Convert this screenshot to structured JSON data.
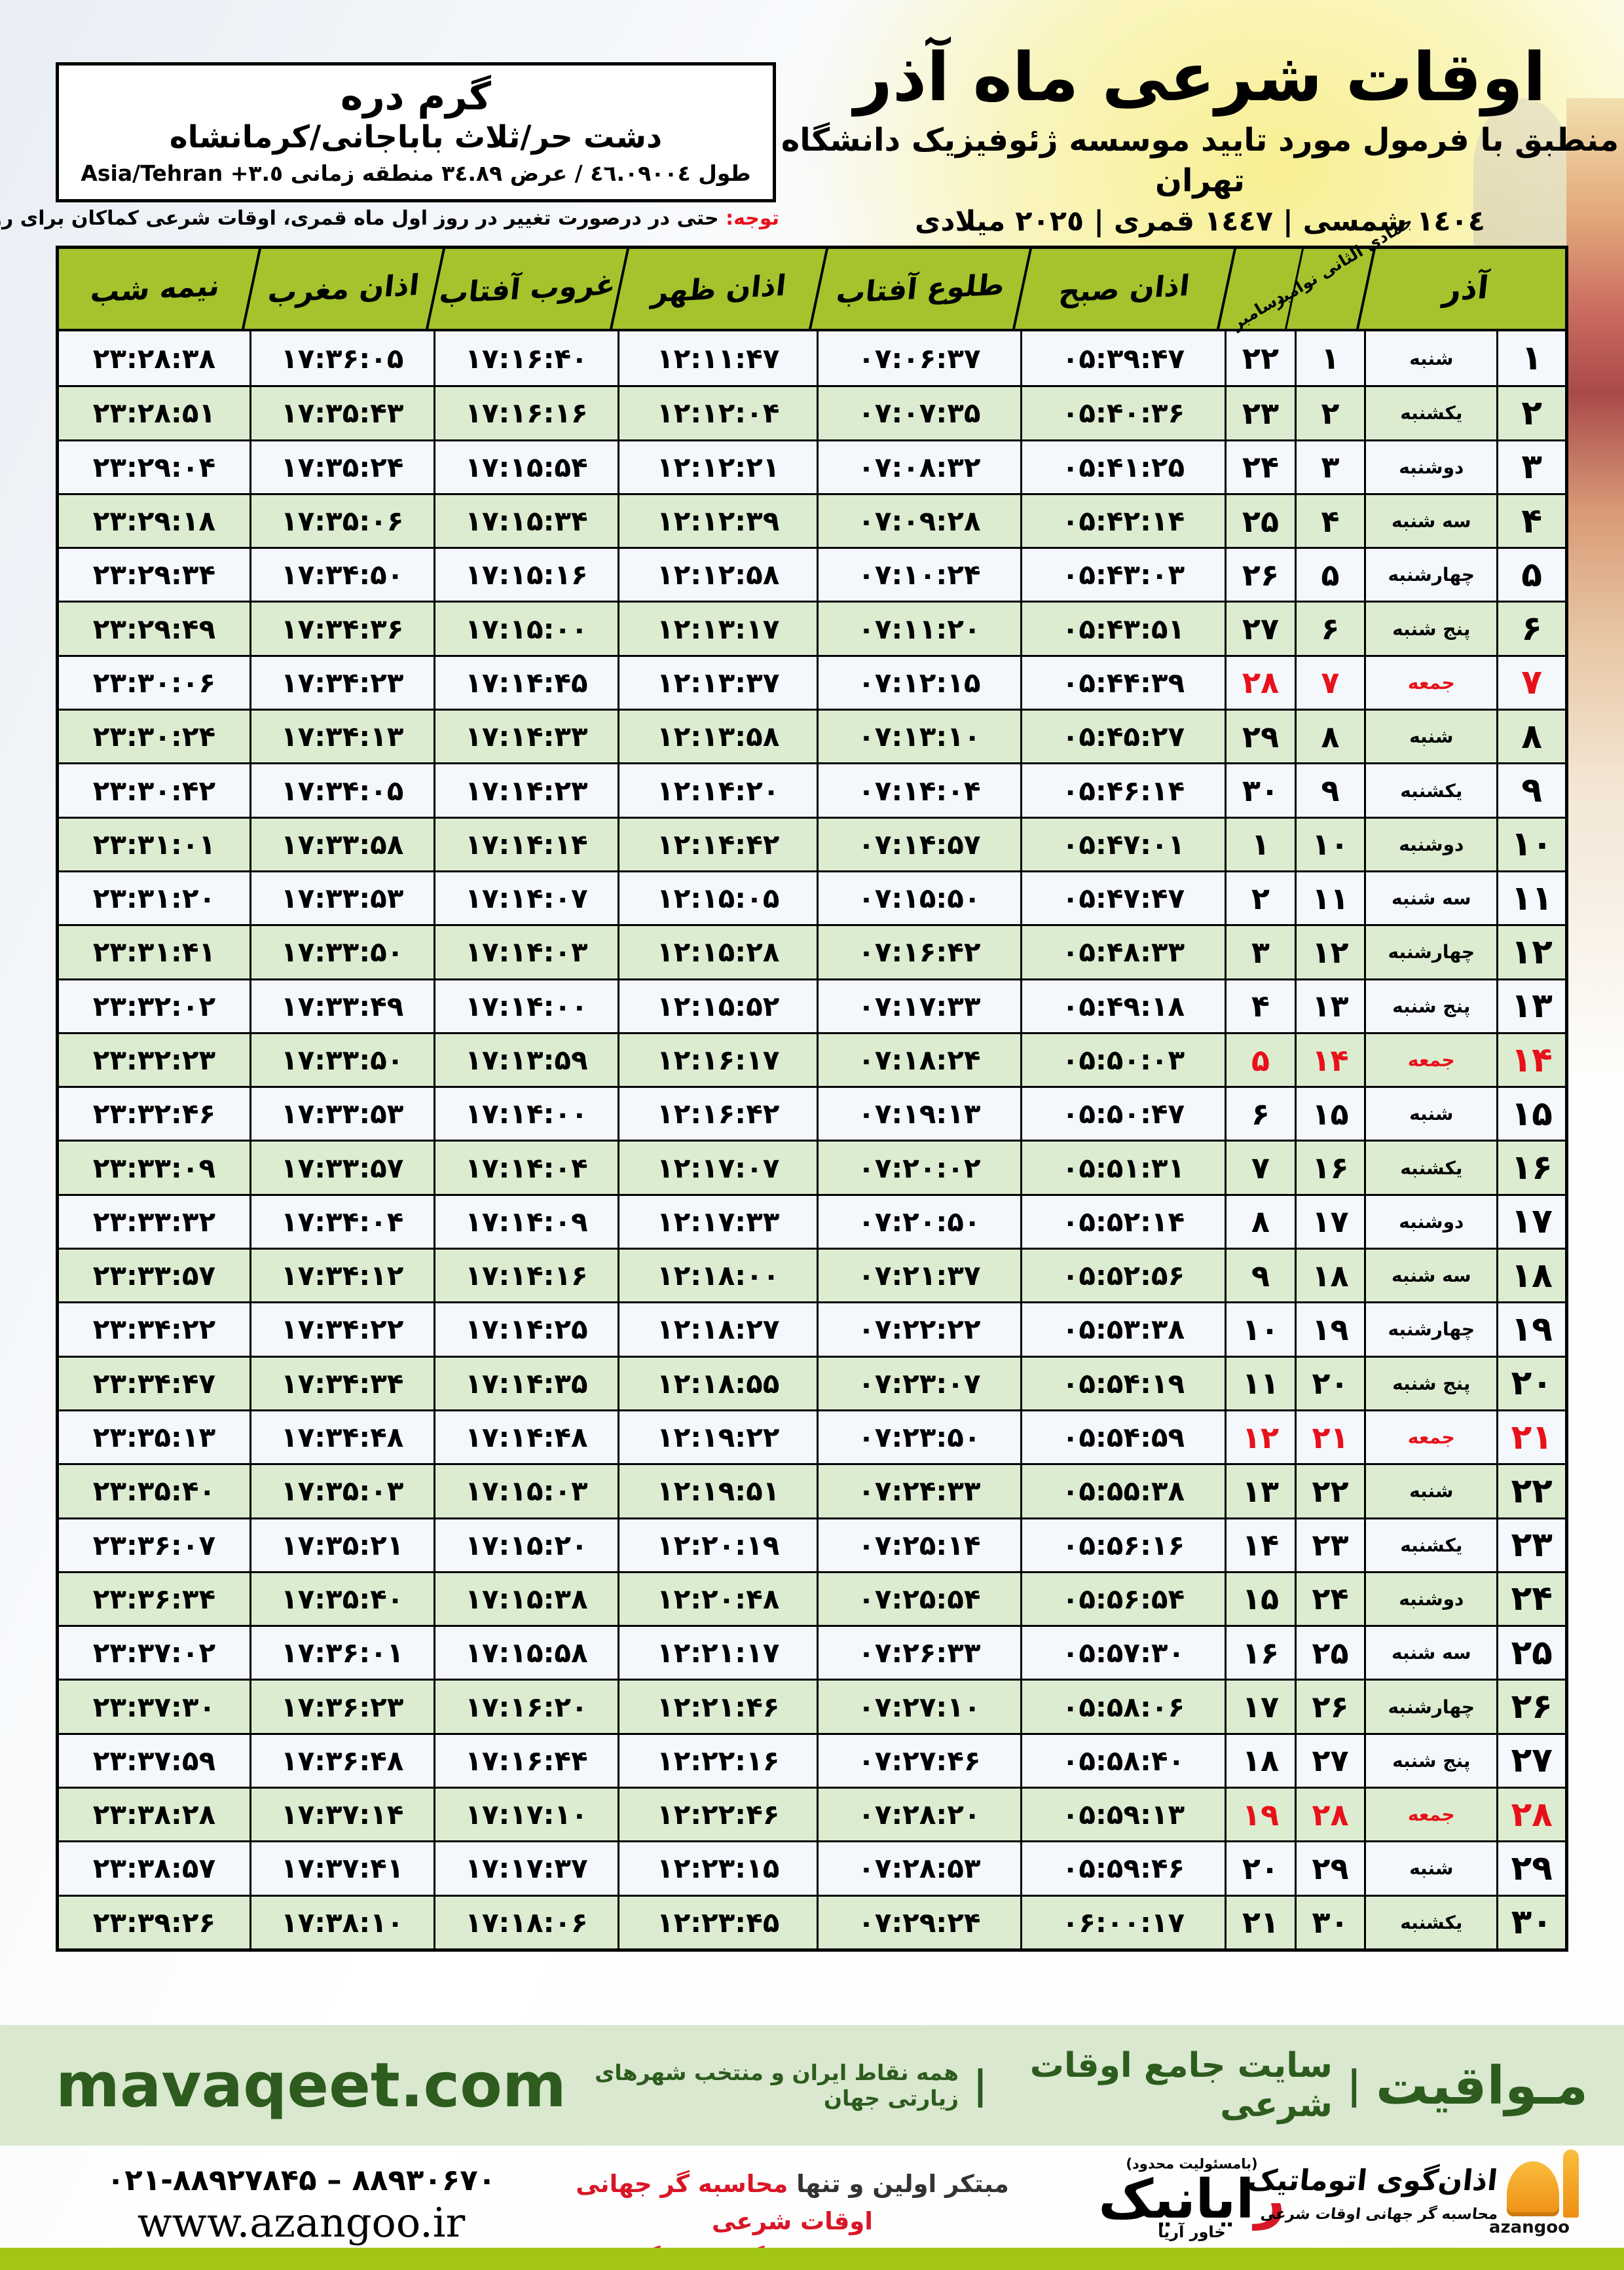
{
  "location_box": {
    "city": "گرم دره",
    "region": "دشت حر/ثلاث باباجانی/کرمانشاه",
    "coords": "طول ٤٦.٠٩٠٠٤ / عرض ٣٤.٨٩ منطقه زمانی ٣.٥+ Asia/Tehran"
  },
  "header": {
    "title": "اوقات شرعی ماه آذر",
    "subtitle": "منطبق با فرمول مورد تایید موسسه ژئوفیزیک دانشگاه تهران",
    "calendar_line": "١٤٠٤ شمسی | ١٤٤٧ قمری | ٢٠٢٥ میلادی"
  },
  "notice": {
    "label": "توجه:",
    "text": " حتی در درصورت تغییر در روز اول ماه قمری، اوقات شرعی کماکان برای روزهای شمسی و میلادی معتبر است."
  },
  "table": {
    "columns": {
      "azar": "آذر",
      "dates_top": "جمادی الثانی نوامبر",
      "dates_bottom": "دسامبر",
      "sobh": "اذان صبح",
      "tolu": "طلوع آفتاب",
      "zohr": "اذان ظهر",
      "ghorub": "غروب آفتاب",
      "maghreb": "اذان مغرب",
      "nimeshab": "نیمه شب"
    },
    "rows": [
      {
        "azar": "۱",
        "weekday": "شنبه",
        "hijri": "۱",
        "greg": "۲۲",
        "sobh": "۰۵:۳۹:۴۷",
        "tolu": "۰۷:۰۶:۳۷",
        "zohr": "۱۲:۱۱:۴۷",
        "ghorub": "۱۷:۱۶:۴۰",
        "maghreb": "۱۷:۳۶:۰۵",
        "nimeshab": "۲۳:۲۸:۳۸",
        "friday": false
      },
      {
        "azar": "۲",
        "weekday": "یکشنبه",
        "hijri": "۲",
        "greg": "۲۳",
        "sobh": "۰۵:۴۰:۳۶",
        "tolu": "۰۷:۰۷:۳۵",
        "zohr": "۱۲:۱۲:۰۴",
        "ghorub": "۱۷:۱۶:۱۶",
        "maghreb": "۱۷:۳۵:۴۳",
        "nimeshab": "۲۳:۲۸:۵۱",
        "friday": false
      },
      {
        "azar": "۳",
        "weekday": "دوشنبه",
        "hijri": "۳",
        "greg": "۲۴",
        "sobh": "۰۵:۴۱:۲۵",
        "tolu": "۰۷:۰۸:۳۲",
        "zohr": "۱۲:۱۲:۲۱",
        "ghorub": "۱۷:۱۵:۵۴",
        "maghreb": "۱۷:۳۵:۲۴",
        "nimeshab": "۲۳:۲۹:۰۴",
        "friday": false
      },
      {
        "azar": "۴",
        "weekday": "سه شنبه",
        "hijri": "۴",
        "greg": "۲۵",
        "sobh": "۰۵:۴۲:۱۴",
        "tolu": "۰۷:۰۹:۲۸",
        "zohr": "۱۲:۱۲:۳۹",
        "ghorub": "۱۷:۱۵:۳۴",
        "maghreb": "۱۷:۳۵:۰۶",
        "nimeshab": "۲۳:۲۹:۱۸",
        "friday": false
      },
      {
        "azar": "۵",
        "weekday": "چهارشنبه",
        "hijri": "۵",
        "greg": "۲۶",
        "sobh": "۰۵:۴۳:۰۳",
        "tolu": "۰۷:۱۰:۲۴",
        "zohr": "۱۲:۱۲:۵۸",
        "ghorub": "۱۷:۱۵:۱۶",
        "maghreb": "۱۷:۳۴:۵۰",
        "nimeshab": "۲۳:۲۹:۳۴",
        "friday": false
      },
      {
        "azar": "۶",
        "weekday": "پنج شنبه",
        "hijri": "۶",
        "greg": "۲۷",
        "sobh": "۰۵:۴۳:۵۱",
        "tolu": "۰۷:۱۱:۲۰",
        "zohr": "۱۲:۱۳:۱۷",
        "ghorub": "۱۷:۱۵:۰۰",
        "maghreb": "۱۷:۳۴:۳۶",
        "nimeshab": "۲۳:۲۹:۴۹",
        "friday": false
      },
      {
        "azar": "۷",
        "weekday": "جمعه",
        "hijri": "۷",
        "greg": "۲۸",
        "sobh": "۰۵:۴۴:۳۹",
        "tolu": "۰۷:۱۲:۱۵",
        "zohr": "۱۲:۱۳:۳۷",
        "ghorub": "۱۷:۱۴:۴۵",
        "maghreb": "۱۷:۳۴:۲۳",
        "nimeshab": "۲۳:۳۰:۰۶",
        "friday": true
      },
      {
        "azar": "۸",
        "weekday": "شنبه",
        "hijri": "۸",
        "greg": "۲۹",
        "sobh": "۰۵:۴۵:۲۷",
        "tolu": "۰۷:۱۳:۱۰",
        "zohr": "۱۲:۱۳:۵۸",
        "ghorub": "۱۷:۱۴:۳۳",
        "maghreb": "۱۷:۳۴:۱۳",
        "nimeshab": "۲۳:۳۰:۲۴",
        "friday": false
      },
      {
        "azar": "۹",
        "weekday": "یکشنبه",
        "hijri": "۹",
        "greg": "۳۰",
        "sobh": "۰۵:۴۶:۱۴",
        "tolu": "۰۷:۱۴:۰۴",
        "zohr": "۱۲:۱۴:۲۰",
        "ghorub": "۱۷:۱۴:۲۳",
        "maghreb": "۱۷:۳۴:۰۵",
        "nimeshab": "۲۳:۳۰:۴۲",
        "friday": false
      },
      {
        "azar": "۱۰",
        "weekday": "دوشنبه",
        "hijri": "۱۰",
        "greg": "۱",
        "sobh": "۰۵:۴۷:۰۱",
        "tolu": "۰۷:۱۴:۵۷",
        "zohr": "۱۲:۱۴:۴۲",
        "ghorub": "۱۷:۱۴:۱۴",
        "maghreb": "۱۷:۳۳:۵۸",
        "nimeshab": "۲۳:۳۱:۰۱",
        "friday": false
      },
      {
        "azar": "۱۱",
        "weekday": "سه شنبه",
        "hijri": "۱۱",
        "greg": "۲",
        "sobh": "۰۵:۴۷:۴۷",
        "tolu": "۰۷:۱۵:۵۰",
        "zohr": "۱۲:۱۵:۰۵",
        "ghorub": "۱۷:۱۴:۰۷",
        "maghreb": "۱۷:۳۳:۵۳",
        "nimeshab": "۲۳:۳۱:۲۰",
        "friday": false
      },
      {
        "azar": "۱۲",
        "weekday": "چهارشنبه",
        "hijri": "۱۲",
        "greg": "۳",
        "sobh": "۰۵:۴۸:۳۳",
        "tolu": "۰۷:۱۶:۴۲",
        "zohr": "۱۲:۱۵:۲۸",
        "ghorub": "۱۷:۱۴:۰۳",
        "maghreb": "۱۷:۳۳:۵۰",
        "nimeshab": "۲۳:۳۱:۴۱",
        "friday": false
      },
      {
        "azar": "۱۳",
        "weekday": "پنج شنبه",
        "hijri": "۱۳",
        "greg": "۴",
        "sobh": "۰۵:۴۹:۱۸",
        "tolu": "۰۷:۱۷:۳۳",
        "zohr": "۱۲:۱۵:۵۲",
        "ghorub": "۱۷:۱۴:۰۰",
        "maghreb": "۱۷:۳۳:۴۹",
        "nimeshab": "۲۳:۳۲:۰۲",
        "friday": false
      },
      {
        "azar": "۱۴",
        "weekday": "جمعه",
        "hijri": "۱۴",
        "greg": "۵",
        "sobh": "۰۵:۵۰:۰۳",
        "tolu": "۰۷:۱۸:۲۴",
        "zohr": "۱۲:۱۶:۱۷",
        "ghorub": "۱۷:۱۳:۵۹",
        "maghreb": "۱۷:۳۳:۵۰",
        "nimeshab": "۲۳:۳۲:۲۳",
        "friday": true
      },
      {
        "azar": "۱۵",
        "weekday": "شنبه",
        "hijri": "۱۵",
        "greg": "۶",
        "sobh": "۰۵:۵۰:۴۷",
        "tolu": "۰۷:۱۹:۱۳",
        "zohr": "۱۲:۱۶:۴۲",
        "ghorub": "۱۷:۱۴:۰۰",
        "maghreb": "۱۷:۳۳:۵۳",
        "nimeshab": "۲۳:۳۲:۴۶",
        "friday": false
      },
      {
        "azar": "۱۶",
        "weekday": "یکشنبه",
        "hijri": "۱۶",
        "greg": "۷",
        "sobh": "۰۵:۵۱:۳۱",
        "tolu": "۰۷:۲۰:۰۲",
        "zohr": "۱۲:۱۷:۰۷",
        "ghorub": "۱۷:۱۴:۰۴",
        "maghreb": "۱۷:۳۳:۵۷",
        "nimeshab": "۲۳:۳۳:۰۹",
        "friday": false
      },
      {
        "azar": "۱۷",
        "weekday": "دوشنبه",
        "hijri": "۱۷",
        "greg": "۸",
        "sobh": "۰۵:۵۲:۱۴",
        "tolu": "۰۷:۲۰:۵۰",
        "zohr": "۱۲:۱۷:۳۳",
        "ghorub": "۱۷:۱۴:۰۹",
        "maghreb": "۱۷:۳۴:۰۴",
        "nimeshab": "۲۳:۳۳:۳۲",
        "friday": false
      },
      {
        "azar": "۱۸",
        "weekday": "سه شنبه",
        "hijri": "۱۸",
        "greg": "۹",
        "sobh": "۰۵:۵۲:۵۶",
        "tolu": "۰۷:۲۱:۳۷",
        "zohr": "۱۲:۱۸:۰۰",
        "ghorub": "۱۷:۱۴:۱۶",
        "maghreb": "۱۷:۳۴:۱۲",
        "nimeshab": "۲۳:۳۳:۵۷",
        "friday": false
      },
      {
        "azar": "۱۹",
        "weekday": "چهارشنبه",
        "hijri": "۱۹",
        "greg": "۱۰",
        "sobh": "۰۵:۵۳:۳۸",
        "tolu": "۰۷:۲۲:۲۲",
        "zohr": "۱۲:۱۸:۲۷",
        "ghorub": "۱۷:۱۴:۲۵",
        "maghreb": "۱۷:۳۴:۲۲",
        "nimeshab": "۲۳:۳۴:۲۲",
        "friday": false
      },
      {
        "azar": "۲۰",
        "weekday": "پنج شنبه",
        "hijri": "۲۰",
        "greg": "۱۱",
        "sobh": "۰۵:۵۴:۱۹",
        "tolu": "۰۷:۲۳:۰۷",
        "zohr": "۱۲:۱۸:۵۵",
        "ghorub": "۱۷:۱۴:۳۵",
        "maghreb": "۱۷:۳۴:۳۴",
        "nimeshab": "۲۳:۳۴:۴۷",
        "friday": false
      },
      {
        "azar": "۲۱",
        "weekday": "جمعه",
        "hijri": "۲۱",
        "greg": "۱۲",
        "sobh": "۰۵:۵۴:۵۹",
        "tolu": "۰۷:۲۳:۵۰",
        "zohr": "۱۲:۱۹:۲۲",
        "ghorub": "۱۷:۱۴:۴۸",
        "maghreb": "۱۷:۳۴:۴۸",
        "nimeshab": "۲۳:۳۵:۱۳",
        "friday": true
      },
      {
        "azar": "۲۲",
        "weekday": "شنبه",
        "hijri": "۲۲",
        "greg": "۱۳",
        "sobh": "۰۵:۵۵:۳۸",
        "tolu": "۰۷:۲۴:۳۳",
        "zohr": "۱۲:۱۹:۵۱",
        "ghorub": "۱۷:۱۵:۰۳",
        "maghreb": "۱۷:۳۵:۰۳",
        "nimeshab": "۲۳:۳۵:۴۰",
        "friday": false
      },
      {
        "azar": "۲۳",
        "weekday": "یکشنبه",
        "hijri": "۲۳",
        "greg": "۱۴",
        "sobh": "۰۵:۵۶:۱۶",
        "tolu": "۰۷:۲۵:۱۴",
        "zohr": "۱۲:۲۰:۱۹",
        "ghorub": "۱۷:۱۵:۲۰",
        "maghreb": "۱۷:۳۵:۲۱",
        "nimeshab": "۲۳:۳۶:۰۷",
        "friday": false
      },
      {
        "azar": "۲۴",
        "weekday": "دوشنبه",
        "hijri": "۲۴",
        "greg": "۱۵",
        "sobh": "۰۵:۵۶:۵۴",
        "tolu": "۰۷:۲۵:۵۴",
        "zohr": "۱۲:۲۰:۴۸",
        "ghorub": "۱۷:۱۵:۳۸",
        "maghreb": "۱۷:۳۵:۴۰",
        "nimeshab": "۲۳:۳۶:۳۴",
        "friday": false
      },
      {
        "azar": "۲۵",
        "weekday": "سه شنبه",
        "hijri": "۲۵",
        "greg": "۱۶",
        "sobh": "۰۵:۵۷:۳۰",
        "tolu": "۰۷:۲۶:۳۳",
        "zohr": "۱۲:۲۱:۱۷",
        "ghorub": "۱۷:۱۵:۵۸",
        "maghreb": "۱۷:۳۶:۰۱",
        "nimeshab": "۲۳:۳۷:۰۲",
        "friday": false
      },
      {
        "azar": "۲۶",
        "weekday": "چهارشنبه",
        "hijri": "۲۶",
        "greg": "۱۷",
        "sobh": "۰۵:۵۸:۰۶",
        "tolu": "۰۷:۲۷:۱۰",
        "zohr": "۱۲:۲۱:۴۶",
        "ghorub": "۱۷:۱۶:۲۰",
        "maghreb": "۱۷:۳۶:۲۳",
        "nimeshab": "۲۳:۳۷:۳۰",
        "friday": false
      },
      {
        "azar": "۲۷",
        "weekday": "پنج شنبه",
        "hijri": "۲۷",
        "greg": "۱۸",
        "sobh": "۰۵:۵۸:۴۰",
        "tolu": "۰۷:۲۷:۴۶",
        "zohr": "۱۲:۲۲:۱۶",
        "ghorub": "۱۷:۱۶:۴۴",
        "maghreb": "۱۷:۳۶:۴۸",
        "nimeshab": "۲۳:۳۷:۵۹",
        "friday": false
      },
      {
        "azar": "۲۸",
        "weekday": "جمعه",
        "hijri": "۲۸",
        "greg": "۱۹",
        "sobh": "۰۵:۵۹:۱۳",
        "tolu": "۰۷:۲۸:۲۰",
        "zohr": "۱۲:۲۲:۴۶",
        "ghorub": "۱۷:۱۷:۱۰",
        "maghreb": "۱۷:۳۷:۱۴",
        "nimeshab": "۲۳:۳۸:۲۸",
        "friday": true
      },
      {
        "azar": "۲۹",
        "weekday": "شنبه",
        "hijri": "۲۹",
        "greg": "۲۰",
        "sobh": "۰۵:۵۹:۴۶",
        "tolu": "۰۷:۲۸:۵۳",
        "zohr": "۱۲:۲۳:۱۵",
        "ghorub": "۱۷:۱۷:۳۷",
        "maghreb": "۱۷:۳۷:۴۱",
        "nimeshab": "۲۳:۳۸:۵۷",
        "friday": false
      },
      {
        "azar": "۳۰",
        "weekday": "یکشنبه",
        "hijri": "۳۰",
        "greg": "۲۱",
        "sobh": "۰۶:۰۰:۱۷",
        "tolu": "۰۷:۲۹:۲۴",
        "zohr": "۱۲:۲۳:۴۵",
        "ghorub": "۱۷:۱۸:۰۶",
        "maghreb": "۱۷:۳۸:۱۰",
        "nimeshab": "۲۳:۳۹:۲۶",
        "friday": false
      }
    ]
  },
  "mavaqeet_band": {
    "brand": "مـواقیت",
    "sep": "|",
    "tagline1": "سایت جامع اوقات شرعی",
    "tagline2": "همه نقاط ایران و منتخب شهرهای زیارتی جهان",
    "site": "mavaqeet.com"
  },
  "contact": {
    "phones": "۰۲۱-۸۸۹۲۷۸۴۵ – ۸۸۹۳۰۶۷۰",
    "website": "www.azangoo.ir"
  },
  "promo": {
    "line1_black": "مبتکر اولین و تنها ",
    "line1_red": "محاسبه گر جهانی اوقات شرعی",
    "line2_black": "و تولید کننده انواع ",
    "line2_red": "دستگاه اذان گوی تمام خودکار ماهواره ای"
  },
  "rayanik": {
    "note": "(بامسئولیت محدود)",
    "name_first_letter": "ر",
    "name_rest": "ایانیک",
    "sub": "خاور آریا"
  },
  "azangoo": {
    "name": "اذان‌گوی اتوماتیک",
    "sub": "محاسبه گر جهانی اوقات شرعی",
    "latin": "azangoo"
  },
  "colors": {
    "header_green": "#a4c32d",
    "row_green": "#dcecd1",
    "row_white": "#f4f7fb",
    "accent_red": "#e8111a",
    "band_green": "#d9e8cf",
    "dark_green": "#2d5c1e",
    "lime_bar": "#a3c614",
    "logo_orange": "#ef8f14"
  }
}
